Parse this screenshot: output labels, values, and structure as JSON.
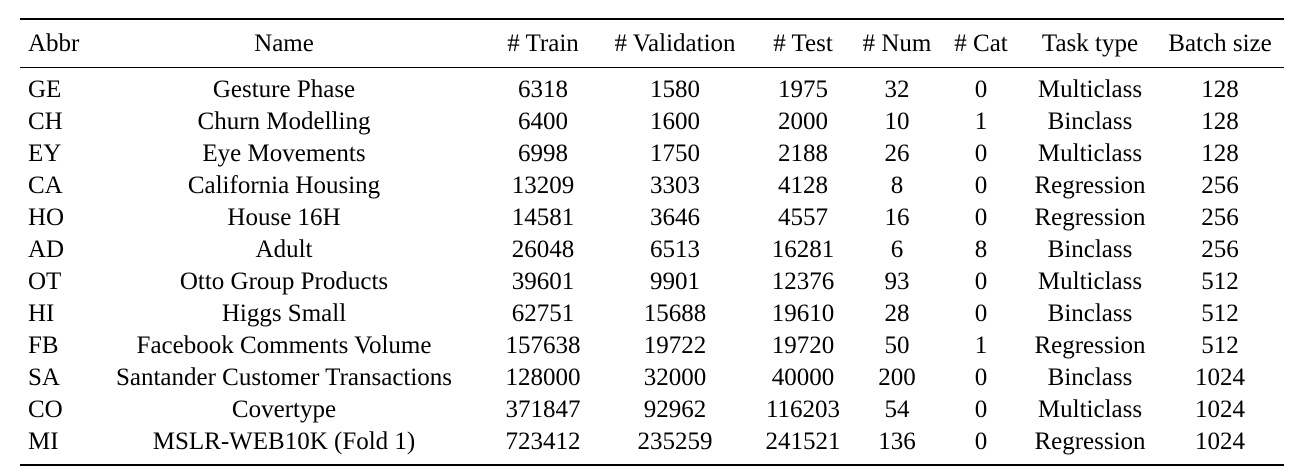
{
  "table": {
    "headers": [
      "Abbr",
      "Name",
      "# Train",
      "# Validation",
      "# Test",
      "# Num",
      "# Cat",
      "Task type",
      "Batch size"
    ],
    "rows": [
      [
        "GE",
        "Gesture Phase",
        "6318",
        "1580",
        "1975",
        "32",
        "0",
        "Multiclass",
        "128"
      ],
      [
        "CH",
        "Churn Modelling",
        "6400",
        "1600",
        "2000",
        "10",
        "1",
        "Binclass",
        "128"
      ],
      [
        "EY",
        "Eye Movements",
        "6998",
        "1750",
        "2188",
        "26",
        "0",
        "Multiclass",
        "128"
      ],
      [
        "CA",
        "California Housing",
        "13209",
        "3303",
        "4128",
        "8",
        "0",
        "Regression",
        "256"
      ],
      [
        "HO",
        "House 16H",
        "14581",
        "3646",
        "4557",
        "16",
        "0",
        "Regression",
        "256"
      ],
      [
        "AD",
        "Adult",
        "26048",
        "6513",
        "16281",
        "6",
        "8",
        "Binclass",
        "256"
      ],
      [
        "OT",
        "Otto Group Products",
        "39601",
        "9901",
        "12376",
        "93",
        "0",
        "Multiclass",
        "512"
      ],
      [
        "HI",
        "Higgs Small",
        "62751",
        "15688",
        "19610",
        "28",
        "0",
        "Binclass",
        "512"
      ],
      [
        "FB",
        "Facebook Comments Volume",
        "157638",
        "19722",
        "19720",
        "50",
        "1",
        "Regression",
        "512"
      ],
      [
        "SA",
        "Santander Customer Transactions",
        "128000",
        "32000",
        "40000",
        "200",
        "0",
        "Binclass",
        "1024"
      ],
      [
        "CO",
        "Covertype",
        "371847",
        "92962",
        "116203",
        "54",
        "0",
        "Multiclass",
        "1024"
      ],
      [
        "MI",
        "MSLR-WEB10K (Fold 1)",
        "723412",
        "235259",
        "241521",
        "136",
        "0",
        "Regression",
        "1024"
      ]
    ]
  }
}
